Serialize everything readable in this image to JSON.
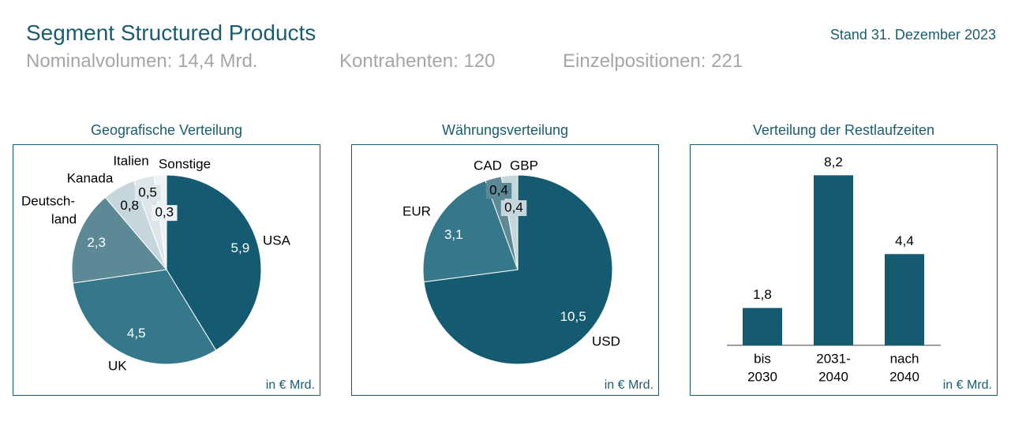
{
  "header": {
    "title": "Segment Structured Products",
    "date": "Stand 31. Dezember 2023",
    "kpis": [
      "Nominalvolumen: 14,4 Mrd.",
      "Kontrahenten: 120",
      "Einzelpositionen: 221"
    ]
  },
  "colors": {
    "accent": "#1a5d70",
    "kpi_text": "#a6a6a6",
    "slice_dark": "#145b72",
    "slice_mid": "#35788c",
    "slice_grey": "#5c8995",
    "slice_light": "#c6d6dd",
    "slice_lighter": "#dde7eb",
    "slice_lightest": "#edf3f5"
  },
  "chart_data": [
    {
      "type": "pie",
      "title": "Geografische Verteilung",
      "unit": "in € Mrd.",
      "slices": [
        {
          "name": "USA",
          "value": 5.9,
          "label": "5,9"
        },
        {
          "name": "UK",
          "value": 4.5,
          "label": "4,5"
        },
        {
          "name": "Deutsch-land",
          "value": 2.3,
          "label": "2,3"
        },
        {
          "name": "Kanada",
          "value": 0.8,
          "label": "0,8"
        },
        {
          "name": "Italien",
          "value": 0.5,
          "label": "0,5"
        },
        {
          "name": "Sonstige",
          "value": 0.3,
          "label": "0,3"
        }
      ]
    },
    {
      "type": "pie",
      "title": "Währungsverteilung",
      "unit": "in € Mrd.",
      "slices": [
        {
          "name": "USD",
          "value": 10.5,
          "label": "10,5"
        },
        {
          "name": "EUR",
          "value": 3.1,
          "label": "3,1"
        },
        {
          "name": "CAD",
          "value": 0.4,
          "label": "0,4"
        },
        {
          "name": "GBP",
          "value": 0.4,
          "label": "0,4"
        }
      ]
    },
    {
      "type": "bar",
      "title": "Verteilung der Restlaufzeiten",
      "unit": "in € Mrd.",
      "categories": [
        "bis 2030",
        "2031-2040",
        "nach 2040"
      ],
      "values": [
        1.8,
        8.2,
        4.4
      ],
      "value_labels": [
        "1,8",
        "8,2",
        "4,4"
      ]
    }
  ]
}
